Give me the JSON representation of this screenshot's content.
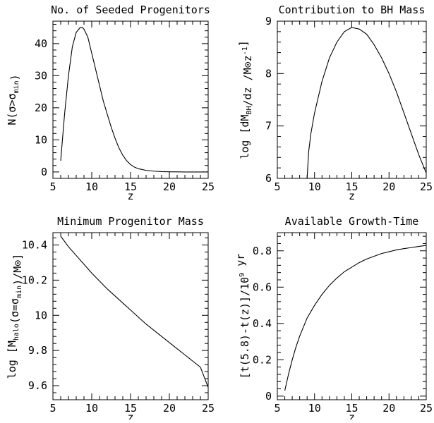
{
  "chart_data": [
    {
      "type": "line",
      "title": "No. of Seeded Progenitors",
      "xlabel": "z",
      "ylabel": "N(σ>σ_min)",
      "xlim": [
        5,
        25
      ],
      "ylim": [
        -2,
        47
      ],
      "xticks": [
        5,
        10,
        15,
        20,
        25
      ],
      "yticks": [
        0,
        10,
        20,
        30,
        40
      ],
      "series": [
        {
          "x": [
            6.0,
            6.5,
            7.0,
            7.5,
            8.0,
            8.5,
            8.8,
            9.0,
            9.5,
            10.0,
            10.5,
            11.0,
            11.5,
            12.0,
            12.5,
            13.0,
            13.5,
            14.0,
            14.5,
            15.0,
            15.5,
            16.0,
            17.0,
            18.0,
            19.0,
            20.0,
            22.0,
            25.0
          ],
          "y": [
            3.5,
            18,
            30,
            39,
            43.5,
            45,
            45,
            44.5,
            42,
            37,
            32,
            27,
            22,
            18,
            14,
            10.5,
            7.5,
            5.2,
            3.5,
            2.3,
            1.5,
            1.0,
            0.5,
            0.25,
            0.1,
            0.05,
            0.0,
            0.0
          ]
        }
      ]
    },
    {
      "type": "line",
      "title": "Contribution to BH Mass",
      "xlabel": "z",
      "ylabel": "log [dM_BH/dz / M⊙z⁻¹]",
      "xlim": [
        5,
        25
      ],
      "ylim": [
        6,
        9
      ],
      "xticks": [
        5,
        10,
        15,
        20,
        25
      ],
      "yticks": [
        6,
        7,
        8,
        9
      ],
      "series": [
        {
          "x": [
            9.0,
            9.2,
            9.5,
            10.0,
            10.5,
            11.0,
            12.0,
            13.0,
            14.0,
            15.0,
            16.0,
            17.0,
            18.0,
            19.0,
            20.0,
            21.0,
            22.0,
            23.0,
            24.0,
            25.0
          ],
          "y": [
            6.0,
            6.5,
            6.85,
            7.25,
            7.55,
            7.85,
            8.3,
            8.6,
            8.8,
            8.88,
            8.85,
            8.75,
            8.55,
            8.3,
            8.0,
            7.65,
            7.25,
            6.85,
            6.45,
            6.1
          ]
        }
      ]
    },
    {
      "type": "line",
      "title": "Minimum Progenitor Mass",
      "xlabel": "z",
      "ylabel": "log [M_halo(σ=σ_min)/M⊙]",
      "xlim": [
        5,
        25
      ],
      "ylim": [
        9.52,
        10.47
      ],
      "xticks": [
        5,
        10,
        15,
        20,
        25
      ],
      "yticks": [
        9.6,
        9.8,
        10.0,
        10.2,
        10.4
      ],
      "ytick_labels": [
        "9.6",
        "9.8",
        "10",
        "10.2",
        "10.4"
      ],
      "series": [
        {
          "x": [
            6,
            7,
            8,
            9,
            10,
            11,
            12,
            13,
            14,
            15,
            16,
            17,
            18,
            19,
            20,
            21,
            22,
            23,
            24,
            25
          ],
          "y": [
            10.45,
            10.39,
            10.34,
            10.29,
            10.24,
            10.195,
            10.15,
            10.11,
            10.07,
            10.03,
            9.99,
            9.95,
            9.915,
            9.88,
            9.845,
            9.81,
            9.775,
            9.74,
            9.705,
            9.59
          ]
        }
      ]
    },
    {
      "type": "line",
      "title": "Available Growth-Time",
      "xlabel": "z",
      "ylabel": "[t(5.8)-t(z)]/10⁹ yr",
      "xlim": [
        5,
        25
      ],
      "ylim": [
        -0.02,
        0.9
      ],
      "xticks": [
        5,
        10,
        15,
        20,
        25
      ],
      "yticks": [
        0,
        0.2,
        0.4,
        0.6,
        0.8
      ],
      "series": [
        {
          "x": [
            6.0,
            6.5,
            7.0,
            7.5,
            8.0,
            9.0,
            10.0,
            11.0,
            12.0,
            13.0,
            14.0,
            15.0,
            16.0,
            17.0,
            18.0,
            19.0,
            20.0,
            21.0,
            22.0,
            23.0,
            24.0,
            25.0
          ],
          "y": [
            0.03,
            0.12,
            0.2,
            0.27,
            0.33,
            0.43,
            0.5,
            0.56,
            0.61,
            0.65,
            0.685,
            0.71,
            0.735,
            0.755,
            0.77,
            0.785,
            0.795,
            0.805,
            0.812,
            0.818,
            0.824,
            0.83
          ]
        }
      ]
    }
  ]
}
